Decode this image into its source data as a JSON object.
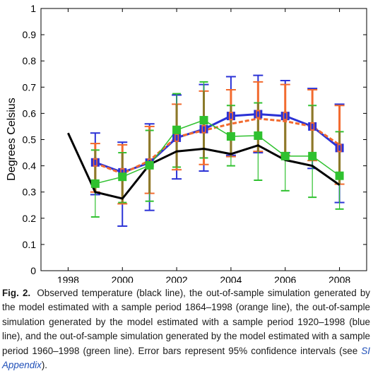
{
  "chart_data": {
    "type": "line",
    "ylabel": "Degrees Celsius",
    "xlabel": "",
    "xlim": [
      1997,
      2009
    ],
    "ylim": [
      0,
      1
    ],
    "xticks": [
      "1998",
      "2000",
      "2002",
      "2004",
      "2006",
      "2008"
    ],
    "yticks": [
      "0",
      "0.1",
      "0.2",
      "0.3",
      "0.4",
      "0.5",
      "0.6",
      "0.7",
      "0.8",
      "0.9",
      "1"
    ],
    "grid": false,
    "legend": "none",
    "colors": {
      "observed": "#000000",
      "orange": "#f26a2e",
      "blue": "#2b32d6",
      "green": "#2fc12f",
      "errbar_olive": "#8a7a2a"
    },
    "series": [
      {
        "key": "observed",
        "x": [
          1998,
          1999,
          2000,
          2001,
          2002,
          2003,
          2004,
          2005,
          2006,
          2007,
          2008
        ],
        "values": [
          0.525,
          0.3,
          0.275,
          0.405,
          0.455,
          0.465,
          0.445,
          0.478,
          0.422,
          0.4,
          0.327
        ]
      },
      {
        "key": "orange",
        "x": [
          1999,
          2000,
          2001,
          2002,
          2003,
          2004,
          2005,
          2006,
          2007,
          2008
        ],
        "values": [
          0.41,
          0.37,
          0.42,
          0.51,
          0.535,
          0.56,
          0.58,
          0.57,
          0.55,
          0.48
        ],
        "low": [
          0.3,
          0.255,
          0.295,
          0.385,
          0.405,
          0.435,
          0.455,
          0.44,
          0.42,
          0.33
        ],
        "high": [
          0.485,
          0.48,
          0.55,
          0.635,
          0.685,
          0.69,
          0.72,
          0.71,
          0.69,
          0.63
        ]
      },
      {
        "key": "blue",
        "x": [
          1999,
          2000,
          2001,
          2002,
          2003,
          2004,
          2005,
          2006,
          2007,
          2008
        ],
        "values": [
          0.413,
          0.375,
          0.412,
          0.507,
          0.54,
          0.59,
          0.597,
          0.59,
          0.55,
          0.468
        ],
        "low": [
          0.29,
          0.17,
          0.23,
          0.35,
          0.38,
          0.44,
          0.45,
          0.45,
          0.39,
          0.26
        ],
        "high": [
          0.525,
          0.49,
          0.56,
          0.67,
          0.71,
          0.74,
          0.745,
          0.725,
          0.695,
          0.635
        ]
      },
      {
        "key": "green",
        "x": [
          1999,
          2000,
          2001,
          2002,
          2003,
          2004,
          2005,
          2006,
          2007,
          2008
        ],
        "values": [
          0.332,
          0.358,
          0.402,
          0.537,
          0.574,
          0.512,
          0.515,
          0.437,
          0.437,
          0.362
        ],
        "low": [
          0.205,
          0.26,
          0.265,
          0.395,
          0.43,
          0.4,
          0.345,
          0.305,
          0.28,
          0.235
        ],
        "high": [
          0.46,
          0.45,
          0.535,
          0.675,
          0.72,
          0.63,
          0.64,
          0.6,
          0.63,
          0.53
        ]
      }
    ]
  },
  "caption": {
    "label": "Fig. 2.",
    "text_before_link": "Observed temperature (black line), the out-of-sample simulation generated by the model estimated with a sample period 1864–1998 (orange line), the out-of-sample simulation generated by the model estimated with a sample period 1920–1998 (blue line), and the out-of-sample simulation generated by the model estimated with a sample period 1960–1998 (green line). Error bars represent 95% confidence intervals (see ",
    "link": "SI Appendix",
    "text_after_link": ")."
  }
}
